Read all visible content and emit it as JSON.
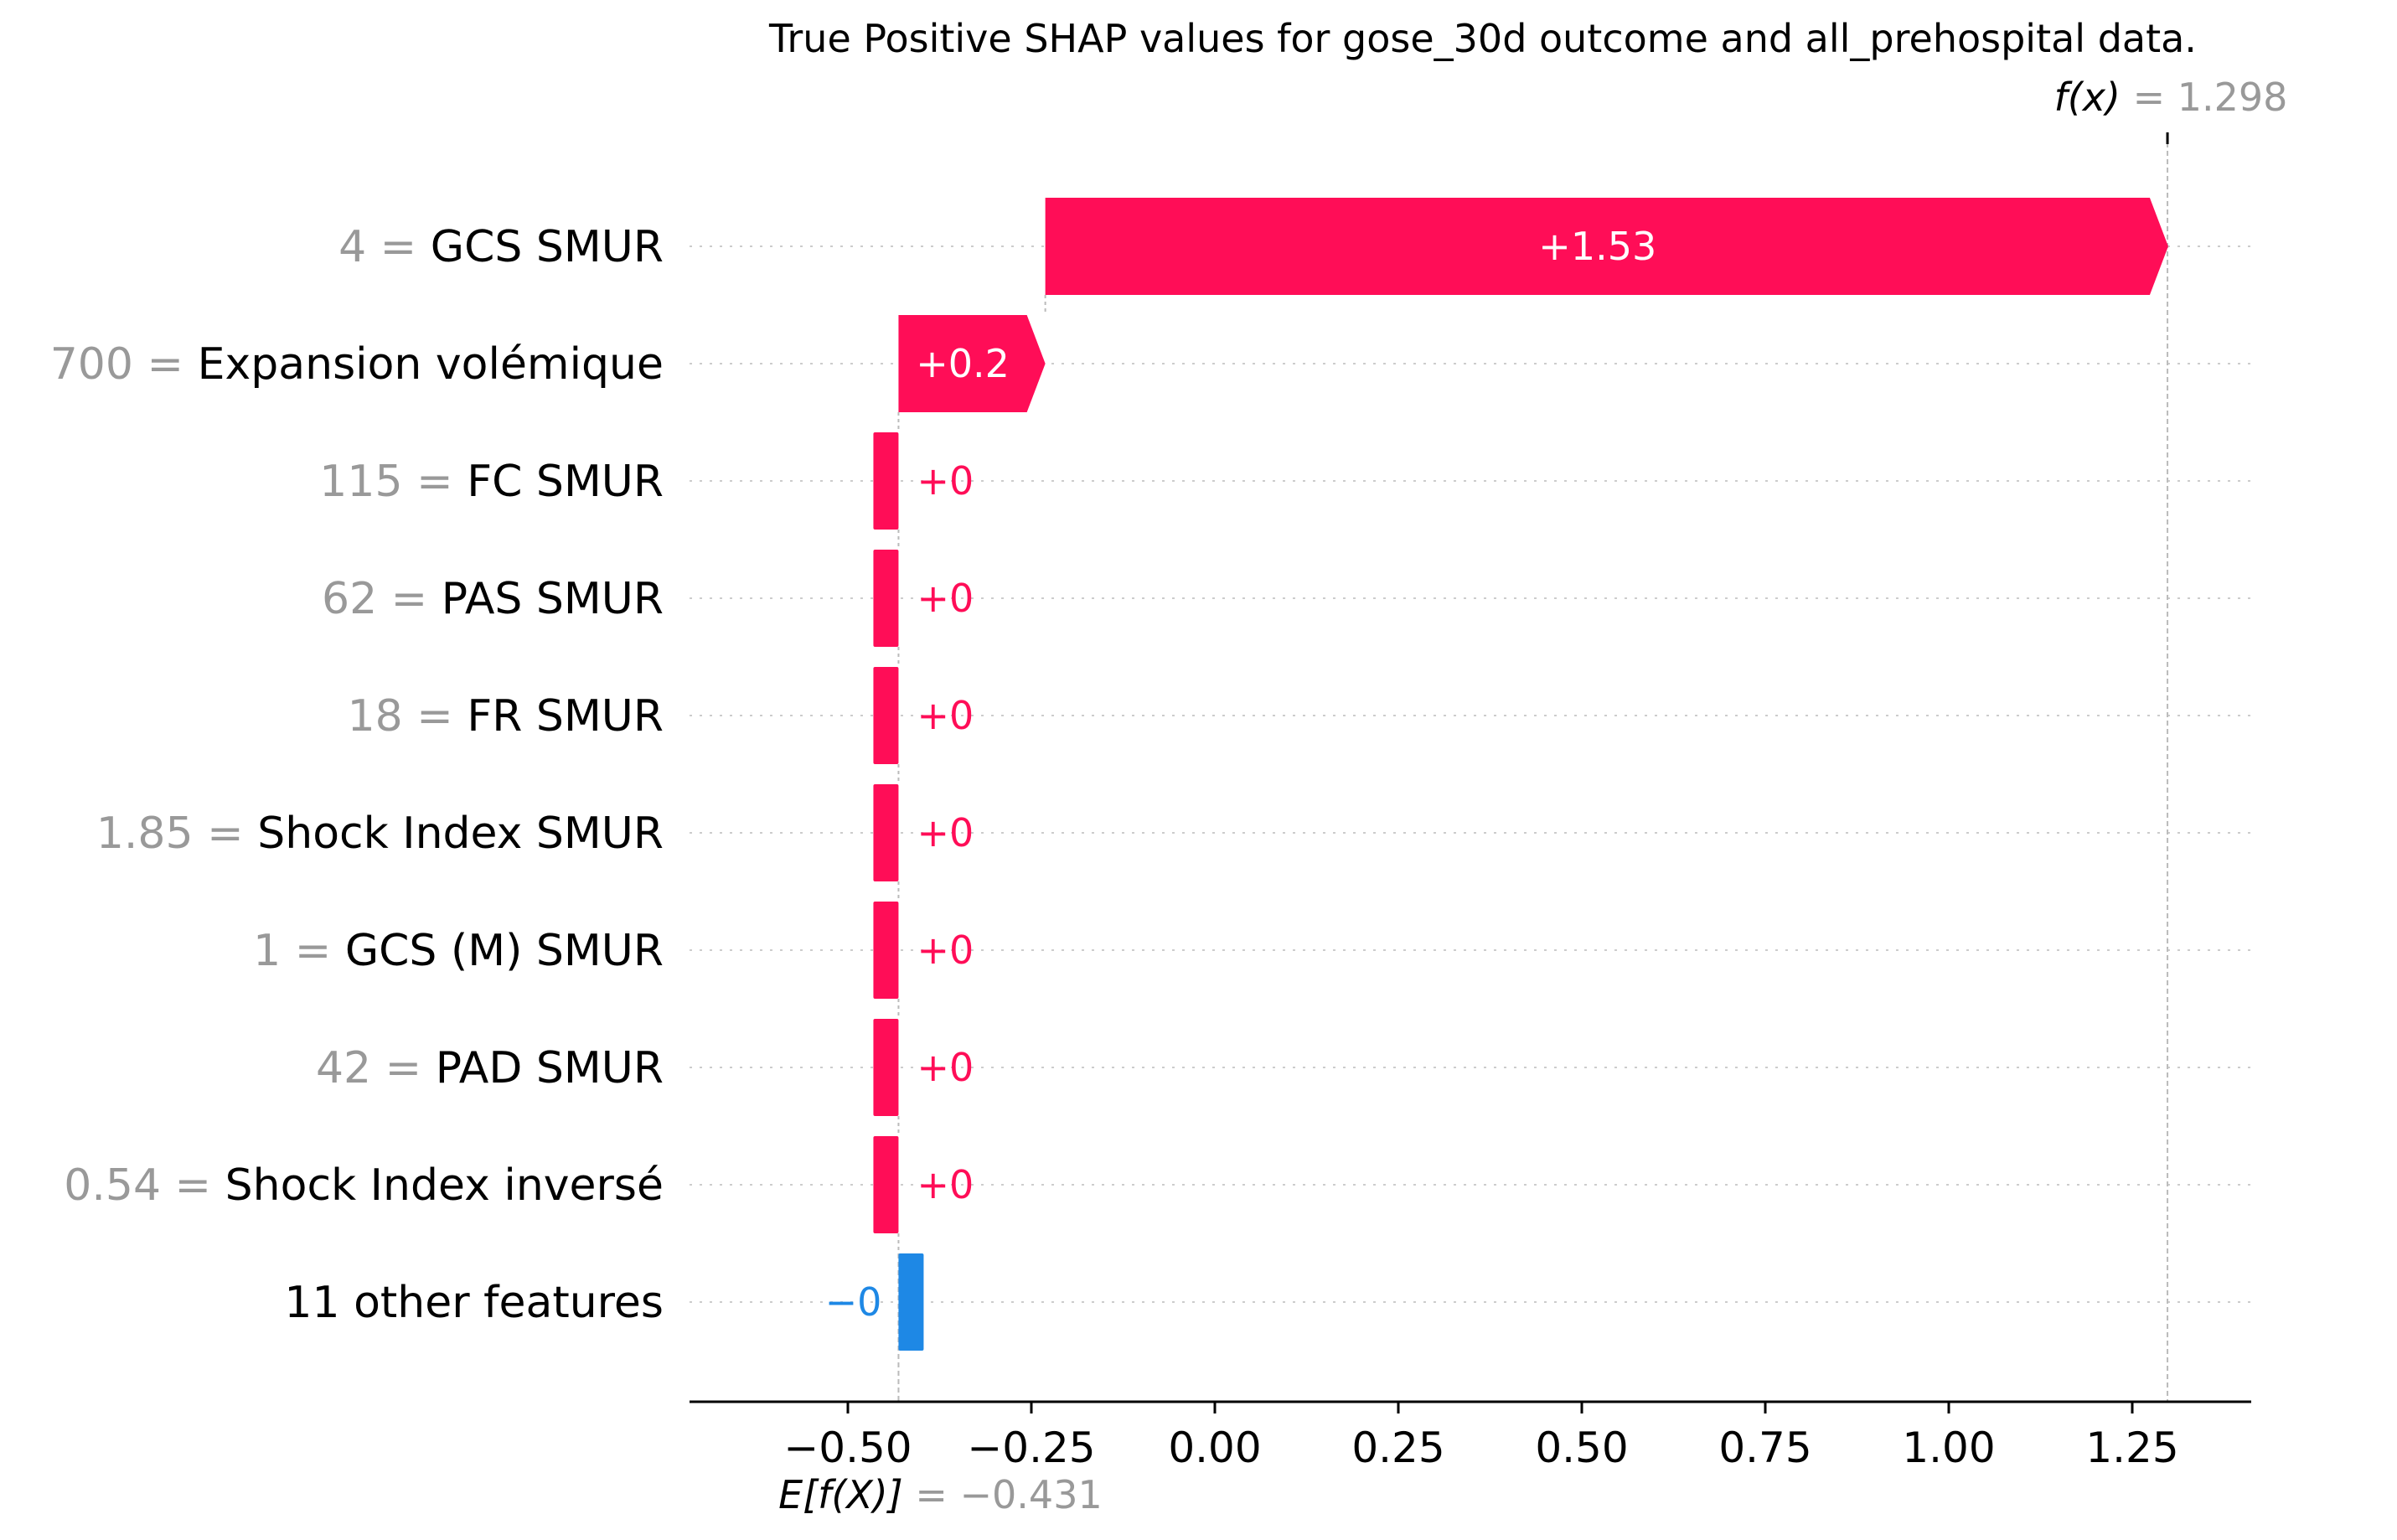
{
  "chart_data": {
    "type": "bar",
    "subtype": "shap-waterfall",
    "title": "True Positive SHAP values for gose_30d outcome and all_prehospital data.",
    "base_value": -0.431,
    "base_value_label": "E[f(X)]",
    "base_value_text": "= −0.431",
    "output_value": 1.298,
    "output_value_label": "f(x)",
    "output_value_text": "= 1.298",
    "xlim": [
      -0.7,
      1.4
    ],
    "x_ticks": [
      -0.5,
      -0.25,
      0.0,
      0.25,
      0.5,
      0.75,
      1.0,
      1.25
    ],
    "x_tick_labels": [
      "−0.50",
      "−0.25",
      "0.00",
      "0.25",
      "0.50",
      "0.75",
      "1.00",
      "1.25"
    ],
    "grid": "horizontal dotted per row",
    "colors": {
      "positive": "#ff0d57",
      "negative": "#1e88e5",
      "muted_text": "#999999",
      "axis": "#000000",
      "grid": "#cccccc"
    },
    "features": [
      {
        "value": "4",
        "name": "GCS SMUR",
        "shap": 1.53,
        "label": "+1.53"
      },
      {
        "value": "700",
        "name": "Expansion volémique",
        "shap": 0.2,
        "label": "+0.2"
      },
      {
        "value": "115",
        "name": "FC SMUR",
        "shap": 0.0,
        "label": "+0"
      },
      {
        "value": "62",
        "name": "PAS  SMUR",
        "shap": 0.0,
        "label": "+0"
      },
      {
        "value": "18",
        "name": "FR SMUR",
        "shap": 0.0,
        "label": "+0"
      },
      {
        "value": "1.85",
        "name": "Shock Index SMUR",
        "shap": 0.0,
        "label": "+0"
      },
      {
        "value": "1",
        "name": "GCS (M) SMUR",
        "shap": 0.0,
        "label": "+0"
      },
      {
        "value": "42",
        "name": "PAD  SMUR",
        "shap": 0.0,
        "label": "+0"
      },
      {
        "value": "0.54",
        "name": "Shock Index inversé",
        "shap": 0.0,
        "label": "+0"
      },
      {
        "value": "",
        "name": "11 other features",
        "shap": -0.0,
        "label": "−0"
      }
    ]
  }
}
